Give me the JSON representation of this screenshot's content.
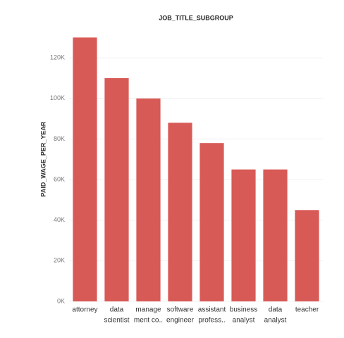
{
  "chart_data": {
    "type": "bar",
    "title": "JOB_TITLE_SUBGROUP",
    "y_label": "PAID_WAGE_PER_YEAR",
    "categories": [
      [
        "attorney"
      ],
      [
        "data",
        "scientist"
      ],
      [
        "manage",
        "ment co.."
      ],
      [
        "software",
        "engineer"
      ],
      [
        "assistant",
        "profess.."
      ],
      [
        "business",
        "analyst"
      ],
      [
        "data",
        "analyst"
      ],
      [
        "teacher"
      ]
    ],
    "values": [
      130000,
      110000,
      100000,
      88000,
      78000,
      65000,
      65000,
      45000
    ],
    "color": "#d85a56",
    "ylim": [
      0,
      136000
    ],
    "yticks": [
      {
        "value": 0,
        "label": "0K"
      },
      {
        "value": 20000,
        "label": "20K"
      },
      {
        "value": 40000,
        "label": "40K"
      },
      {
        "value": 60000,
        "label": "60K"
      },
      {
        "value": 80000,
        "label": "80K"
      },
      {
        "value": 100000,
        "label": "100K"
      },
      {
        "value": 120000,
        "label": "120K"
      }
    ],
    "grid": true
  }
}
